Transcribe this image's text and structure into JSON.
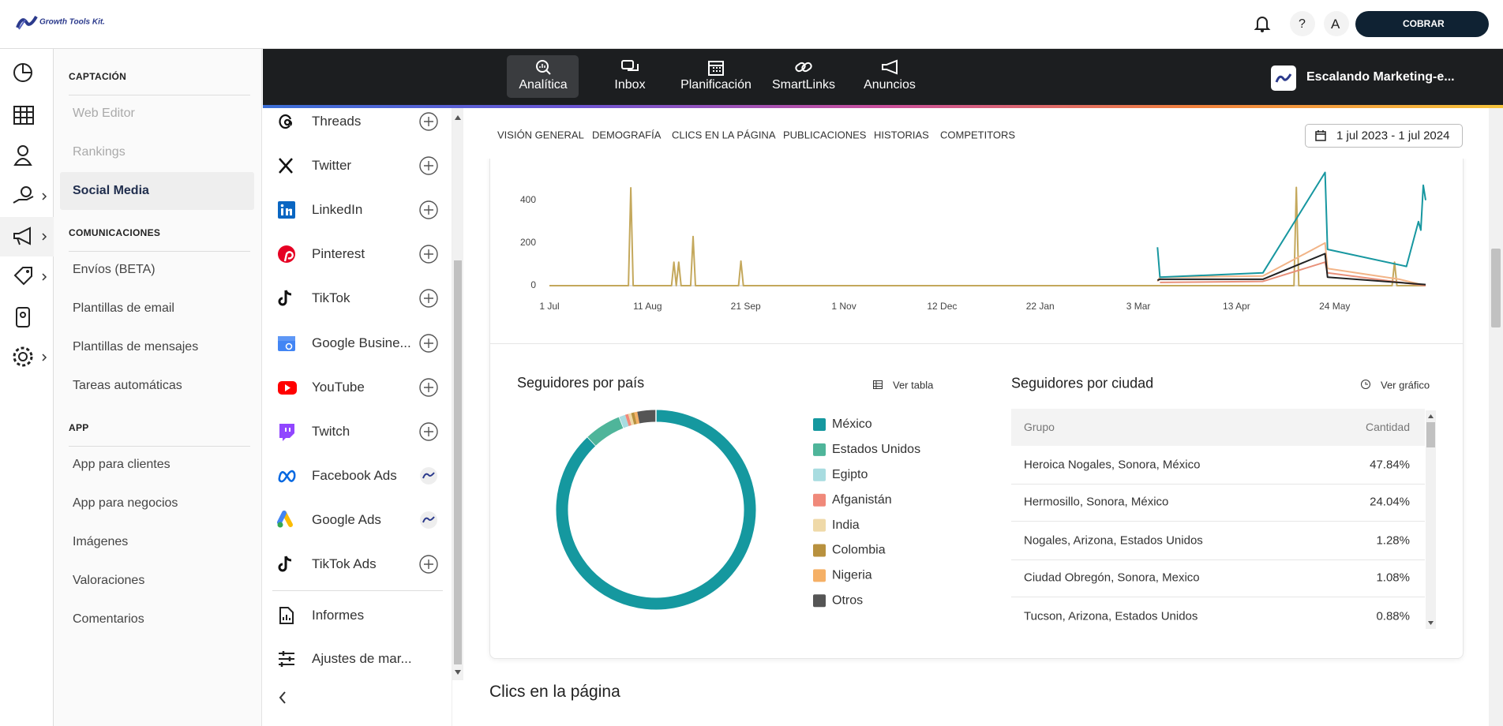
{
  "header": {
    "logo": "Growth Tools Kit.",
    "help": "?",
    "avatar": "A",
    "button": "COBRAR"
  },
  "sidebar": {
    "sections": [
      {
        "title": "CAPTACIÓN",
        "items": [
          "Web Editor",
          "Rankings",
          "Social Media"
        ]
      },
      {
        "title": "COMUNICACIONES",
        "items": [
          "Envíos (BETA)",
          "Plantillas de email",
          "Plantillas de mensajes",
          "Tareas automáticas"
        ]
      },
      {
        "title": "APP",
        "items": [
          "App para clientes",
          "App para negocios",
          "Imágenes",
          "Valoraciones",
          "Comentarios"
        ]
      }
    ]
  },
  "nav": {
    "items": [
      "Analítica",
      "Inbox",
      "Planificación",
      "SmartLinks",
      "Anuncios"
    ],
    "account": "Escalando Marketing-e..."
  },
  "channels": {
    "items": [
      "Threads",
      "Twitter",
      "LinkedIn",
      "Pinterest",
      "TikTok",
      "Google Busine...",
      "YouTube",
      "Twitch",
      "Facebook Ads",
      "Google Ads",
      "TikTok Ads"
    ],
    "tools": [
      "Informes",
      "Ajustes de mar..."
    ]
  },
  "tabs": [
    "VISIÓN GENERAL",
    "DEMOGRAFÍA",
    "CLICS EN LA PÁGINA",
    "PUBLICACIONES",
    "HISTORIAS",
    "COMPETITORS"
  ],
  "date_range": "1 jul 2023 - 1 jul 2024",
  "chart_data": [
    {
      "type": "line",
      "xlim": [
        0,
        366
      ],
      "xticks": [
        {
          "value": 0,
          "label": "1 Jul"
        },
        {
          "value": 41,
          "label": "11 Aug"
        },
        {
          "value": 82,
          "label": "21 Sep"
        },
        {
          "value": 123,
          "label": "1 Nov"
        },
        {
          "value": 164,
          "label": "12 Dec"
        },
        {
          "value": 205,
          "label": "22 Jan"
        },
        {
          "value": 246,
          "label": "3 Mar"
        },
        {
          "value": 287,
          "label": "13 Apr"
        },
        {
          "value": 328,
          "label": "24 May"
        }
      ],
      "ylim": [
        0,
        580
      ],
      "yticks": [
        0,
        200,
        400
      ],
      "grid": false,
      "series": [
        {
          "color": "#c4a85c",
          "x": [
            0,
            33,
            34,
            35,
            51,
            52,
            53,
            54,
            55,
            59,
            60,
            61,
            79,
            80,
            81,
            311,
            312,
            313,
            352,
            353,
            354,
            366
          ],
          "values": [
            0,
            0,
            458,
            0,
            0,
            110,
            0,
            110,
            0,
            0,
            230,
            0,
            0,
            115,
            0,
            0,
            460,
            0,
            0,
            110,
            0,
            0
          ]
        },
        {
          "color": "#f2b487",
          "x": [
            254,
            255,
            298,
            324,
            325,
            355,
            366
          ],
          "values": [
            20,
            40,
            45,
            200,
            80,
            30,
            0
          ]
        },
        {
          "color": "#e8907a",
          "x": [
            255,
            298,
            324,
            325,
            366
          ],
          "values": [
            15,
            20,
            110,
            60,
            0
          ]
        },
        {
          "color": "#222222",
          "x": [
            254,
            255,
            298,
            324,
            325,
            366
          ],
          "values": [
            25,
            30,
            30,
            150,
            40,
            5
          ]
        },
        {
          "color": "#1797a0",
          "x": [
            254,
            255,
            298,
            324,
            325,
            358,
            363,
            364,
            365,
            366
          ],
          "values": [
            180,
            40,
            60,
            530,
            170,
            90,
            300,
            260,
            470,
            400
          ]
        }
      ]
    },
    {
      "type": "pie",
      "title": "Seguidores por país",
      "categories": [
        "México",
        "Estados Unidos",
        "Egipto",
        "Afganistán",
        "India",
        "Colombia",
        "Nigeria",
        "Otros"
      ],
      "values": [
        88,
        6,
        1,
        0.5,
        0.5,
        0.5,
        0.5,
        3
      ],
      "colors": [
        "#15989f",
        "#4fb59a",
        "#a8dce0",
        "#f0897a",
        "#efd9a8",
        "#b8913e",
        "#f5b066",
        "#555555"
      ]
    }
  ],
  "country_panel": {
    "action": "Ver tabla"
  },
  "city_panel": {
    "title": "Seguidores por ciudad",
    "action": "Ver gráfico",
    "table": {
      "columns": [
        "Grupo",
        "Cantidad"
      ],
      "rows": [
        [
          "Heroica Nogales, Sonora, México",
          "47.84%"
        ],
        [
          "Hermosillo, Sonora, México",
          "24.04%"
        ],
        [
          "Nogales, Arizona, Estados Unidos",
          "1.28%"
        ],
        [
          "Ciudad Obregón, Sonora, Mexico",
          "1.08%"
        ],
        [
          "Tucson, Arizona, Estados Unidos",
          "0.88%"
        ]
      ]
    }
  },
  "section_title": "Clics en la página"
}
